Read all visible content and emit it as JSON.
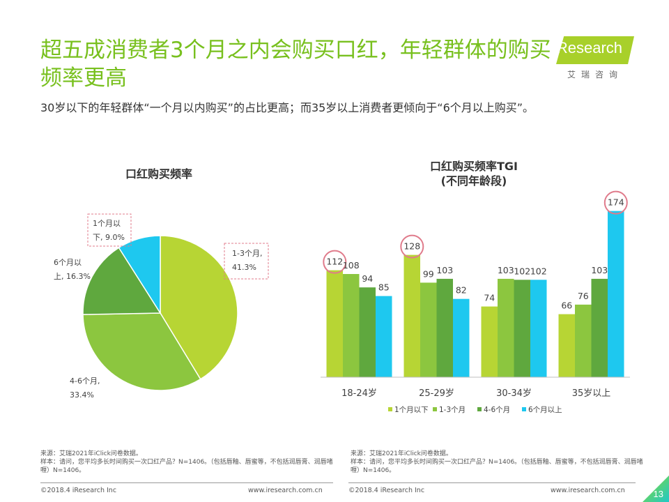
{
  "header": {
    "title": "超五成消费者3个月之内会购买口红，年轻群体的购买频率更高",
    "subtitle": "30岁以下的年轻群体“一个月以内购买”的占比更高；而35岁以上消费者更倾向于“6个月以上购买”。"
  },
  "logo": {
    "brand": "iResearch",
    "sub": "艾瑞咨询"
  },
  "colors": {
    "lt1m": "#b7d534",
    "m1_3": "#8cc63f",
    "m4_6": "#5fa83e",
    "gt6m": "#1ec8ef",
    "highlight": "#e07b8b",
    "title_green": "#78c01e"
  },
  "chart_data": [
    {
      "type": "pie",
      "title": "口红购买频率",
      "slices": [
        {
          "name": "1-3个月",
          "value": 41.3,
          "label_lines": [
            "1-3个月,",
            "41.3%"
          ],
          "color": "#b7d534"
        },
        {
          "name": "4-6个月",
          "value": 33.4,
          "label_lines": [
            "4-6个月,",
            "33.4%"
          ],
          "color": "#8cc63f"
        },
        {
          "name": "6个月以上",
          "value": 16.3,
          "label_lines": [
            "6个月以",
            "上, 16.3%"
          ],
          "color": "#5fa83e"
        },
        {
          "name": "1个月以下",
          "value": 9.0,
          "label_lines": [
            "1个月以",
            "下, 9.0%"
          ],
          "color": "#1ec8ef"
        }
      ]
    },
    {
      "type": "bar",
      "title_lines": [
        "口红购买频率TGI",
        "(不同年龄段)"
      ],
      "categories": [
        "18-24岁",
        "25-29岁",
        "30-34岁",
        "35岁以上"
      ],
      "series": [
        {
          "name": "1个月以下",
          "values": [
            112,
            128,
            74,
            66
          ],
          "color": "#b7d534"
        },
        {
          "name": "1-3个月",
          "values": [
            108,
            99,
            103,
            76
          ],
          "color": "#8cc63f"
        },
        {
          "name": "4-6个月",
          "values": [
            94,
            103,
            102,
            103
          ],
          "color": "#5fa83e"
        },
        {
          "name": "6个月以上",
          "values": [
            85,
            82,
            102,
            174
          ],
          "color": "#1ec8ef"
        }
      ],
      "ylim": [
        0,
        180
      ],
      "highlighted": [
        {
          "series": 0,
          "category": 0
        },
        {
          "series": 0,
          "category": 1
        },
        {
          "series": 3,
          "category": 3
        }
      ],
      "legend": "bottom"
    }
  ],
  "footer": {
    "left_source": [
      "来源：艾瑞2021年iClick问卷数据。",
      "样本：请问，您平均多长时间购买一次口红产品？N=1406。（包括唇釉、唇蜜等，不包括润唇膏、润唇啫喱）N=1406。"
    ],
    "right_source": [
      "来源：艾瑞2021年iClick问卷数据。",
      "样本：请问，您平均多长时间购买一次口红产品？N=1406。（包括唇釉、唇蜜等，不包括润唇膏、润唇啫喱）N=1406。"
    ],
    "left_copyright": "©2018.4 iResearch Inc",
    "left_url": "www.iresearch.com.cn",
    "right_copyright": "©2018.4 iResearch Inc",
    "right_url": "www.iresearch.com.cn",
    "page_number": "13"
  }
}
